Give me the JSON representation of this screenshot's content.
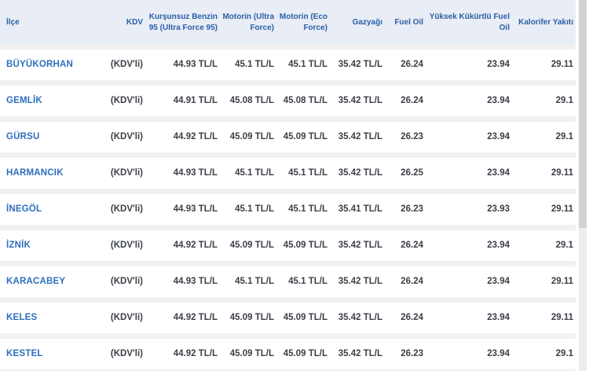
{
  "table": {
    "columns": [
      {
        "key": "ilce",
        "label": "İlçe",
        "align": "left"
      },
      {
        "key": "kdv",
        "label": "KDV",
        "align": "right"
      },
      {
        "key": "benzin95",
        "label": "Kurşunsuz Benzin 95 (Ultra Force 95)",
        "align": "right"
      },
      {
        "key": "motorin_ultra",
        "label": "Motorin (Ultra Force)",
        "align": "right"
      },
      {
        "key": "motorin_eco",
        "label": "Motorin (Eco Force)",
        "align": "right"
      },
      {
        "key": "gazyagi",
        "label": "Gazyağı",
        "align": "right"
      },
      {
        "key": "fuel_oil",
        "label": "Fuel Oil",
        "align": "right"
      },
      {
        "key": "yuksek_fuel",
        "label": "Yüksek Kükürtlü Fuel Oil",
        "align": "right"
      },
      {
        "key": "kalorifer",
        "label": "Kalorifer Yakıtı",
        "align": "right"
      }
    ],
    "rows": [
      [
        "BÜYÜKORHAN",
        "(KDV'li)",
        "44.93 TL/L",
        "45.1 TL/L",
        "45.1 TL/L",
        "35.42 TL/L",
        "26.24",
        "23.94",
        "29.11"
      ],
      [
        "GEMLİK",
        "(KDV'li)",
        "44.91 TL/L",
        "45.08 TL/L",
        "45.08 TL/L",
        "35.42 TL/L",
        "26.24",
        "23.94",
        "29.1"
      ],
      [
        "GÜRSU",
        "(KDV'li)",
        "44.92 TL/L",
        "45.09 TL/L",
        "45.09 TL/L",
        "35.42 TL/L",
        "26.23",
        "23.94",
        "29.1"
      ],
      [
        "HARMANCIK",
        "(KDV'li)",
        "44.93 TL/L",
        "45.1 TL/L",
        "45.1 TL/L",
        "35.42 TL/L",
        "26.25",
        "23.94",
        "29.11"
      ],
      [
        "İNEGÖL",
        "(KDV'li)",
        "44.93 TL/L",
        "45.1 TL/L",
        "45.1 TL/L",
        "35.41 TL/L",
        "26.23",
        "23.93",
        "29.11"
      ],
      [
        "İZNİK",
        "(KDV'li)",
        "44.92 TL/L",
        "45.09 TL/L",
        "45.09 TL/L",
        "35.42 TL/L",
        "26.24",
        "23.94",
        "29.1"
      ],
      [
        "KARACABEY",
        "(KDV'li)",
        "44.93 TL/L",
        "45.1 TL/L",
        "45.1 TL/L",
        "35.42 TL/L",
        "26.24",
        "23.94",
        "29.11"
      ],
      [
        "KELES",
        "(KDV'li)",
        "44.92 TL/L",
        "45.09 TL/L",
        "45.09 TL/L",
        "35.42 TL/L",
        "26.24",
        "23.94",
        "29.11"
      ],
      [
        "KESTEL",
        "(KDV'li)",
        "44.92 TL/L",
        "45.09 TL/L",
        "45.09 TL/L",
        "35.42 TL/L",
        "26.23",
        "23.94",
        "29.1"
      ]
    ]
  },
  "colors": {
    "header_bg": "#e9edf5",
    "header_text": "#2a5fa8",
    "district_text": "#2d6fbd",
    "value_text": "#3b3f48",
    "row_bg": "#ffffff",
    "gap_bg": "#f1f1f2",
    "scrollbar_track": "#ededed",
    "scrollbar_thumb": "#d2d2d2"
  }
}
